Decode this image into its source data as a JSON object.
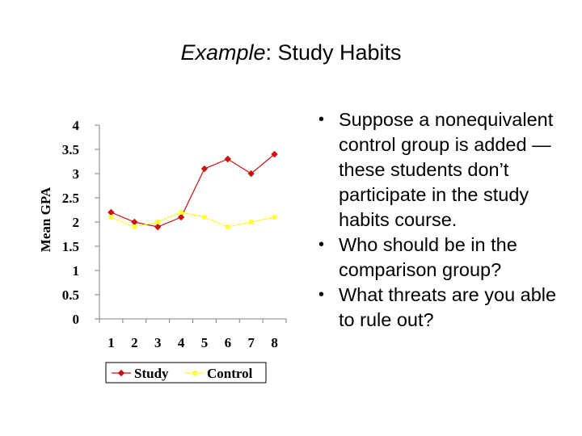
{
  "slide": {
    "title_prefix": "Example",
    "title_rest": ": Study Habits",
    "bullets": [
      "Suppose a nonequivalent control group is added — these students don’t participate in the study habits course.",
      "Who should be in the comparison group?",
      "What threats are you able to rule out?"
    ]
  },
  "chart_data": {
    "type": "line",
    "title": "",
    "xlabel": "",
    "ylabel": "Mean GPA",
    "categories": [
      "1",
      "2",
      "3",
      "4",
      "5",
      "6",
      "7",
      "8"
    ],
    "yticks": [
      "0",
      "0.5",
      "1",
      "1.5",
      "2",
      "2.5",
      "3",
      "3.5",
      "4"
    ],
    "ylim": [
      0,
      4
    ],
    "grid": false,
    "legend": "bottom",
    "series": [
      {
        "name": "Study",
        "color": "#cc1111",
        "marker": "diamond",
        "values": [
          2.2,
          2.0,
          1.9,
          2.1,
          3.1,
          3.3,
          3.0,
          3.4
        ]
      },
      {
        "name": "Control",
        "color": "#ffff33",
        "marker": "square",
        "values": [
          2.1,
          1.9,
          2.0,
          2.2,
          2.1,
          1.9,
          2.0,
          2.1
        ]
      }
    ]
  }
}
